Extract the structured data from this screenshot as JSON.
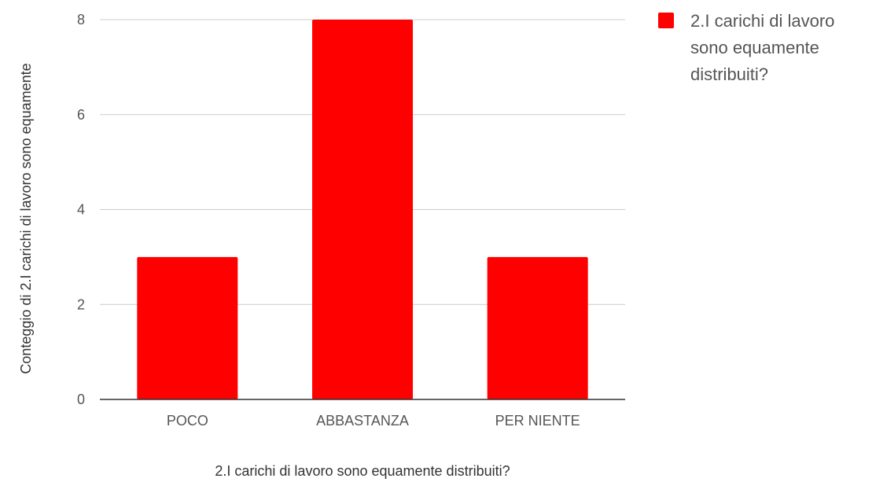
{
  "chart_data": {
    "type": "bar",
    "categories": [
      "POCO",
      "ABBASTANZA",
      "PER NIENTE"
    ],
    "series": [
      {
        "name": "2.I carichi di lavoro sono equamente distribuiti?",
        "values": [
          3,
          8,
          3
        ]
      }
    ],
    "xlabel": "2.I carichi di lavoro sono equamente distribuiti?",
    "ylabel": "Conteggio di 2.I carichi di lavoro sono equamente",
    "ylim": [
      0,
      8
    ],
    "yticks": [
      0,
      2,
      4,
      6,
      8
    ],
    "grid": true,
    "legend_position": "right",
    "legend_lines": [
      "2.I carichi di lavoro",
      "sono equamente",
      "distribuiti?"
    ],
    "colors": {
      "bar": "#ff0000",
      "grid": "#cccccc",
      "axis": "#333333"
    }
  }
}
